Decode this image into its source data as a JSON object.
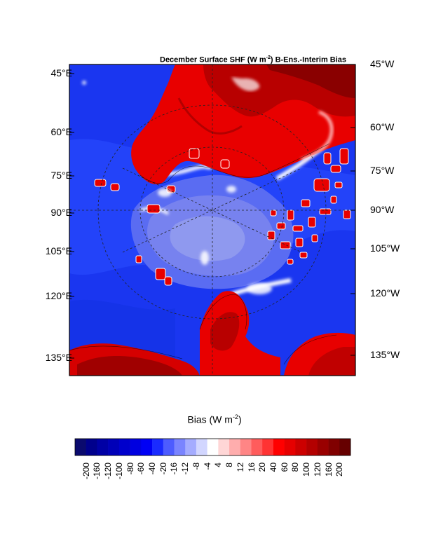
{
  "title": {
    "prefix": "December Surface SHF (W m",
    "exp": "-2",
    "suffix": ") B-Ens.-Interim Bias"
  },
  "map": {
    "projection": "polar-stereographic",
    "left_labels": [
      "45°E",
      "60°E",
      "75°E",
      "90°E",
      "105°E",
      "120°E",
      "135°E"
    ],
    "right_labels": [
      "45°W",
      "60°W",
      "75°W",
      "90°W",
      "105°W",
      "120°W",
      "135°W"
    ],
    "graticule": "dashed"
  },
  "colorbar": {
    "title_prefix": "Bias (W m",
    "title_exp": "-2",
    "title_suffix": ")",
    "labels": [
      "-200",
      "-160",
      "-120",
      "-100",
      "-80",
      "-60",
      "-40",
      "-20",
      "-16",
      "-12",
      "-8",
      "-4",
      "4",
      "8",
      "12",
      "16",
      "20",
      "40",
      "60",
      "80",
      "100",
      "120",
      "160",
      "200"
    ],
    "colors": [
      "#0a0a6e",
      "#00008c",
      "#0000a5",
      "#0000b8",
      "#0000cc",
      "#0000e0",
      "#0000f5",
      "#1a2bff",
      "#4d5cff",
      "#7a84ff",
      "#a5acff",
      "#d2d6ff",
      "#ffffff",
      "#ffd6d6",
      "#ffadad",
      "#ff8585",
      "#ff5c5c",
      "#ff3333",
      "#ff0000",
      "#e60000",
      "#cc0000",
      "#b30000",
      "#990000",
      "#800000",
      "#660000"
    ]
  }
}
